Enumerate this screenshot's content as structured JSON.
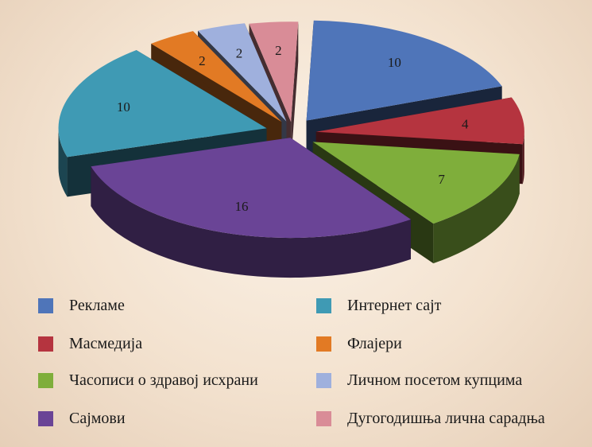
{
  "chart_data": {
    "type": "pie",
    "categories": [
      "Рекламе",
      "Масмедија",
      "Часописи о здравој исхрани",
      "Сајмови",
      "Интернет сајт",
      "Флајери",
      "Личном посетом купцима",
      "Дугогодишња лична сарадња"
    ],
    "values": [
      10,
      4,
      7,
      16,
      10,
      2,
      2,
      2
    ],
    "colors": [
      "#4f75b9",
      "#b5343f",
      "#7fae3b",
      "#6a4496",
      "#3f9ab4",
      "#e27a24",
      "#9fb0dd",
      "#d98c97"
    ],
    "data_labels": [
      "10",
      "4",
      "7",
      "16",
      "10",
      "2",
      "2",
      "2"
    ],
    "style": "3d-exploded",
    "legend_position": "bottom"
  }
}
